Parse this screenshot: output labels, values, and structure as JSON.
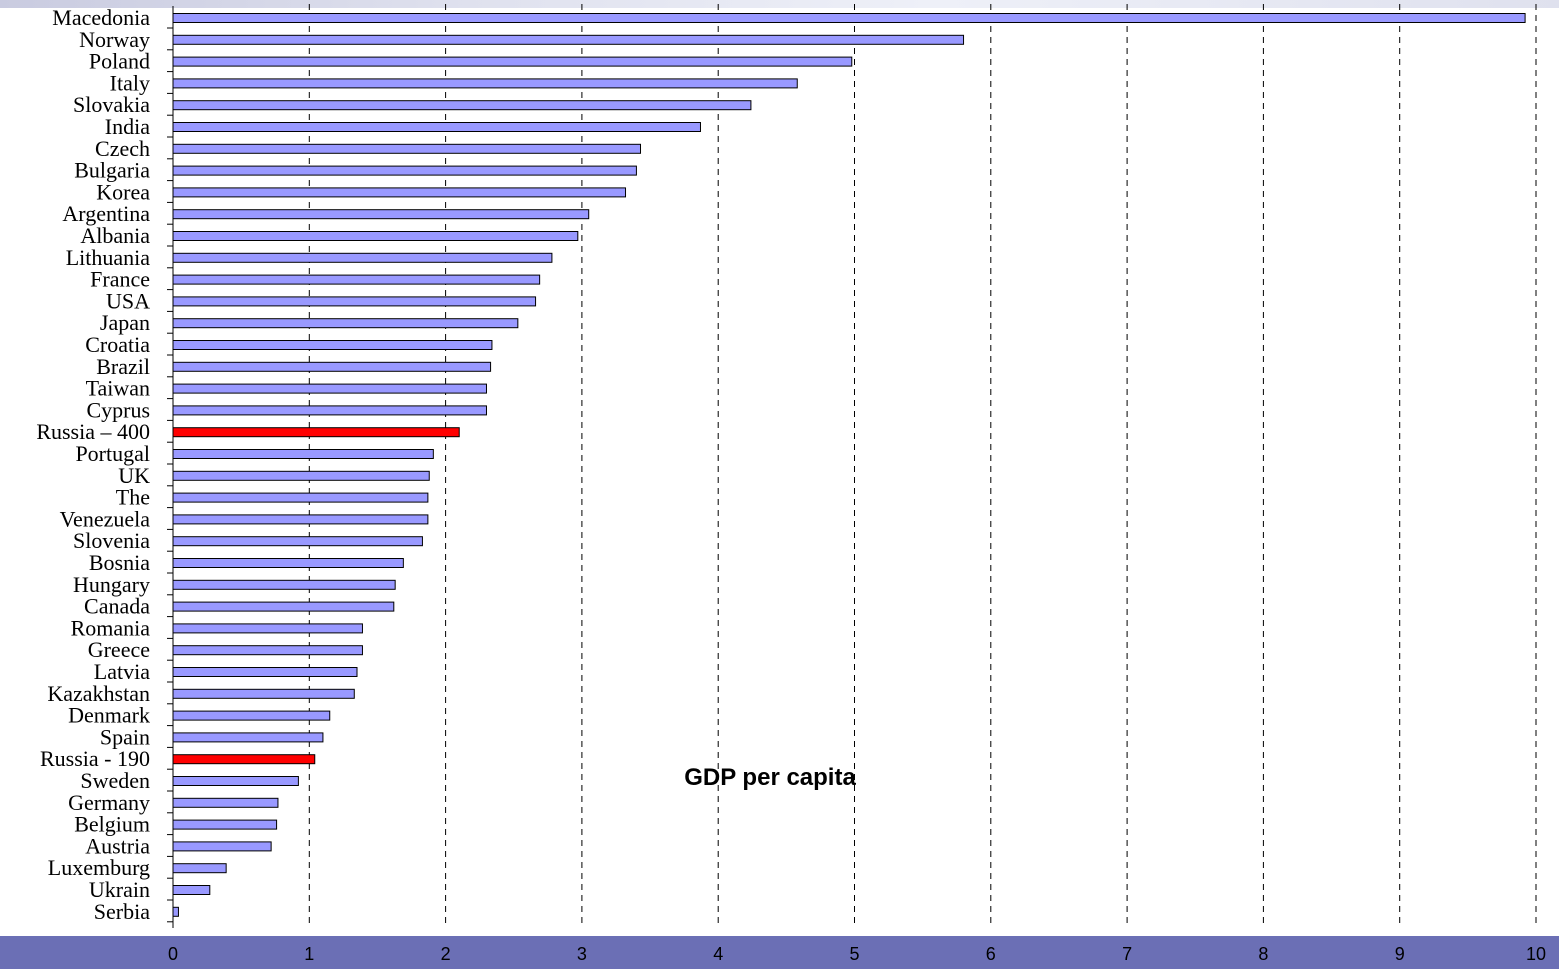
{
  "chart_data": {
    "type": "bar",
    "orientation": "horizontal",
    "annotation": "GDP per capita",
    "xlim": [
      0,
      10
    ],
    "x_ticks": [
      "0",
      "1",
      "2",
      "3",
      "4",
      "5",
      "6",
      "7",
      "8",
      "9",
      "10"
    ],
    "grid": "vertical dashed",
    "colors": {
      "default": "#9999ff",
      "highlight": "#ff0000"
    },
    "categories": [
      "Macedonia",
      "Norway",
      "Poland",
      "Italy",
      "Slovakia",
      "India",
      "Czech",
      "Bulgaria",
      "Korea",
      "Argentina",
      "Albania",
      "Lithuania",
      "France",
      "USA",
      "Japan",
      "Croatia",
      "Brazil",
      "Taiwan",
      "Cyprus",
      "Russia – 400",
      "Portugal",
      "UK",
      "The",
      "Venezuela",
      "Slovenia",
      "Bosnia",
      "Hungary",
      "Canada",
      "Romania",
      "Greece",
      "Latvia",
      "Kazakhstan",
      "Denmark",
      "Spain",
      "Russia - 190",
      "Sweden",
      "Germany",
      "Belgium",
      "Austria",
      "Luxemburg",
      "Ukrain",
      "Serbia"
    ],
    "values": [
      9.92,
      5.8,
      4.98,
      4.58,
      4.24,
      3.87,
      3.43,
      3.4,
      3.32,
      3.05,
      2.97,
      2.78,
      2.69,
      2.66,
      2.53,
      2.34,
      2.33,
      2.3,
      2.3,
      2.1,
      1.91,
      1.88,
      1.87,
      1.87,
      1.83,
      1.69,
      1.63,
      1.62,
      1.39,
      1.39,
      1.35,
      1.33,
      1.15,
      1.1,
      1.04,
      0.92,
      0.77,
      0.76,
      0.72,
      0.39,
      0.27,
      0.04
    ],
    "highlighted": [
      "Russia – 400",
      "Russia - 190"
    ]
  }
}
